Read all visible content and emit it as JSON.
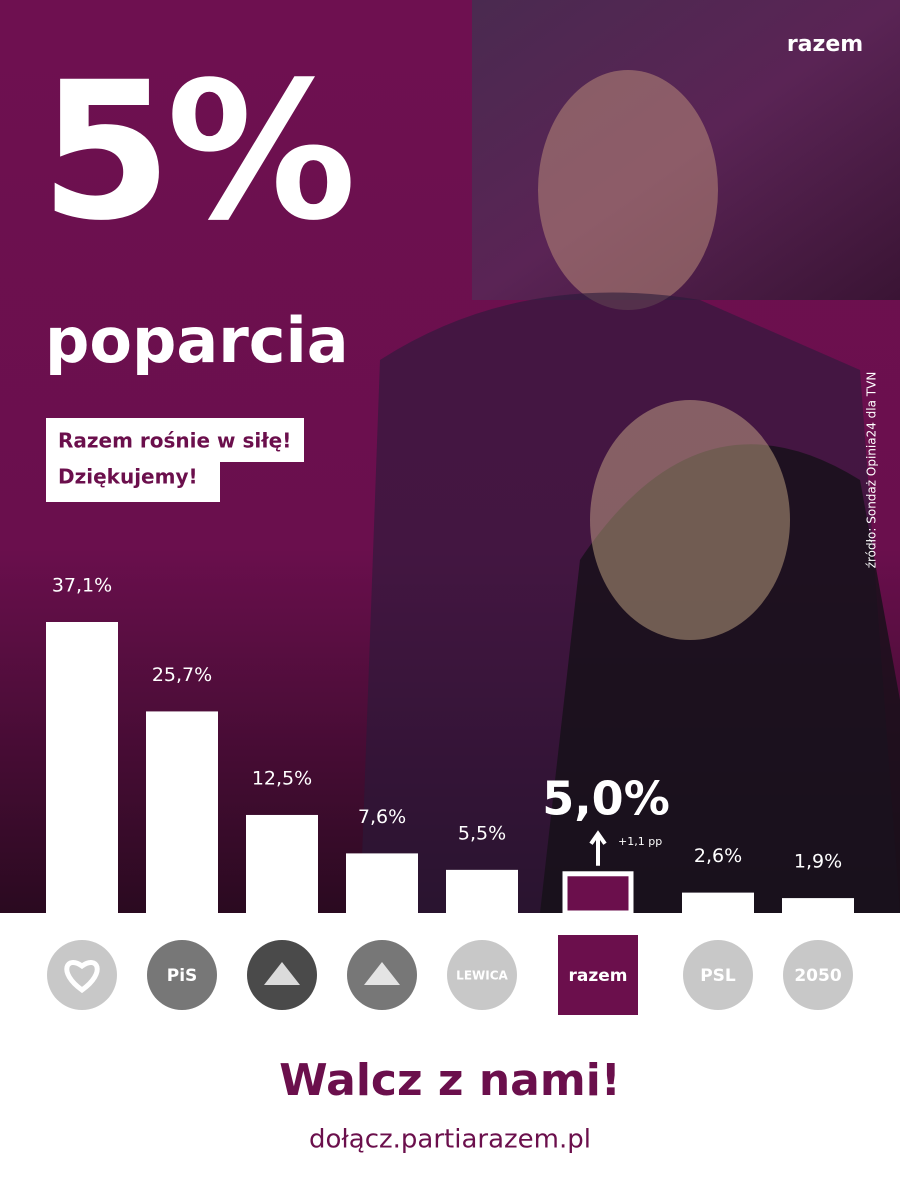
{
  "header": {
    "headline": "5%",
    "subheadline": "poparcia",
    "tagline": [
      "Razem rośnie w siłę!",
      "Dziękujemy!"
    ],
    "brand": "razem",
    "source": "źródło:  Sondaż Opinia24 dla TVN"
  },
  "chart_data": {
    "type": "bar",
    "categories": [
      null,
      "PiS",
      null,
      null,
      "LEWICA",
      "razem",
      "PSL",
      "2050"
    ],
    "values": [
      37.1,
      25.7,
      12.5,
      7.6,
      5.5,
      5.0,
      2.6,
      1.9
    ],
    "value_labels": [
      "37,1%",
      "25,7%",
      "12,5%",
      "7,6%",
      "5,5%",
      "5,0%",
      "2,6%",
      "1,9%"
    ],
    "colors": [
      "#ffffff",
      "#ffffff",
      "#ffffff",
      "#ffffff",
      "#ffffff",
      "#6b0f4c",
      "#ffffff",
      "#ffffff"
    ],
    "annotations": [
      "+1,1 pp"
    ]
  },
  "footer": {
    "cta": "Walcz z nami!",
    "url": "dołącz.partiarazem.pl"
  }
}
